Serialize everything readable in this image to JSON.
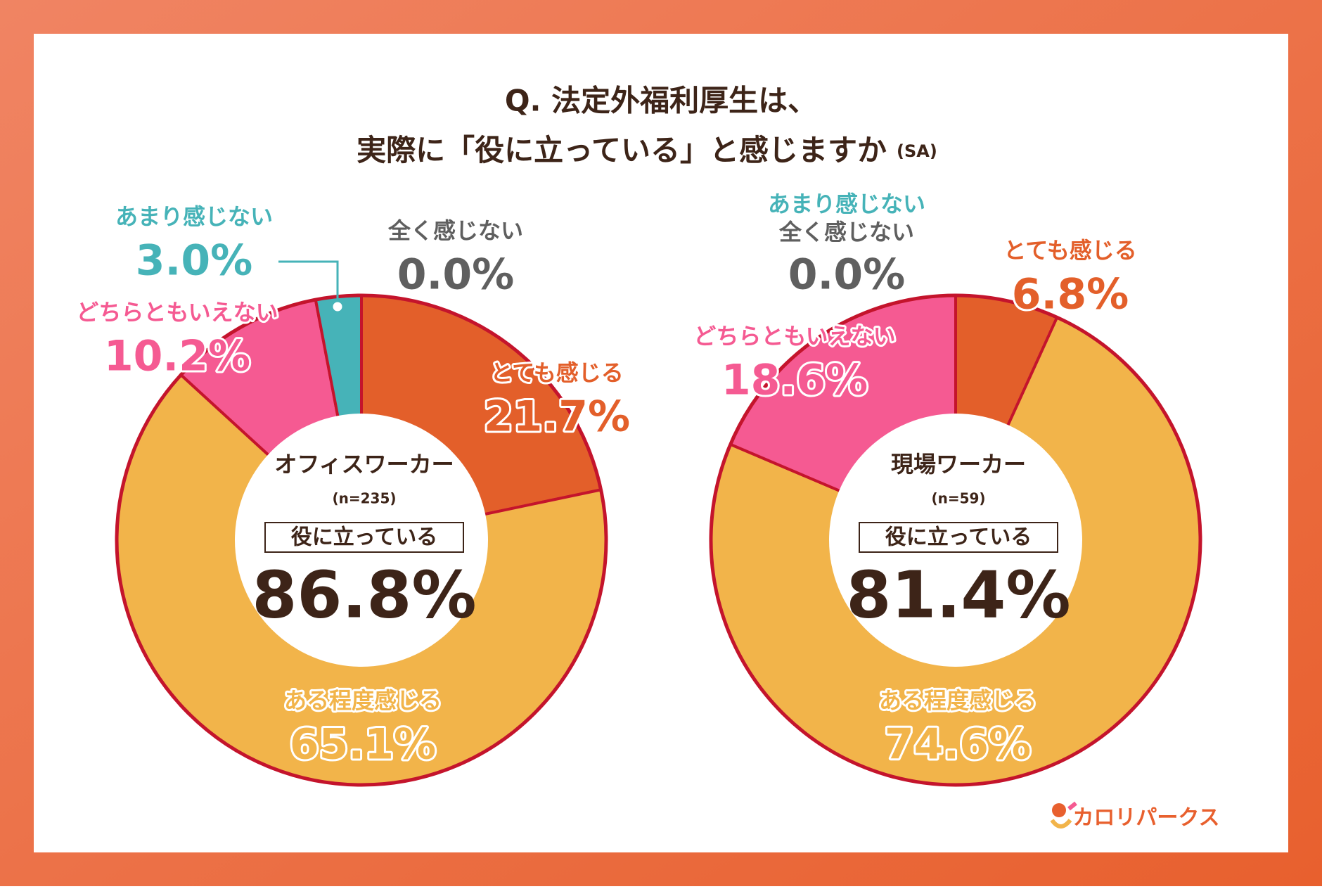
{
  "title": {
    "line1": "Q. 法定外福利厚生は、",
    "line2": "実際に「役に立っている」と感じますか",
    "note": "(SA)"
  },
  "chart_data": [
    {
      "type": "donut",
      "group": "オフィスワーカー",
      "n_label": "(n=235)",
      "summary_label": "役に立っている",
      "summary_value": 86.8,
      "summary_value_label": "86.8%",
      "categories": [
        "とても感じる",
        "ある程度感じる",
        "どちらともいえない",
        "あまり感じない",
        "全く感じない"
      ],
      "values": [
        21.7,
        65.1,
        10.2,
        3.0,
        0.0
      ],
      "value_labels": [
        "21.7%",
        "65.1%",
        "10.2%",
        "3.0%",
        "0.0%"
      ],
      "colors": [
        "#e35f2a",
        "#f2b44a",
        "#f55a92",
        "#46b3b8",
        "#5f5f5f"
      ]
    },
    {
      "type": "donut",
      "group": "現場ワーカー",
      "n_label": "(n=59)",
      "summary_label": "役に立っている",
      "summary_value": 81.4,
      "summary_value_label": "81.4%",
      "categories": [
        "とても感じる",
        "ある程度感じる",
        "どちらともいえない",
        "あまり感じない",
        "全く感じない"
      ],
      "values": [
        6.8,
        74.6,
        18.6,
        0.0,
        0.0
      ],
      "value_labels": [
        "6.8%",
        "74.6%",
        "18.6%",
        "0.0%",
        null
      ],
      "colors": [
        "#e35f2a",
        "#f2b44a",
        "#f55a92",
        "#46b3b8",
        "#5f5f5f"
      ]
    }
  ],
  "logo": "カロリパークス"
}
